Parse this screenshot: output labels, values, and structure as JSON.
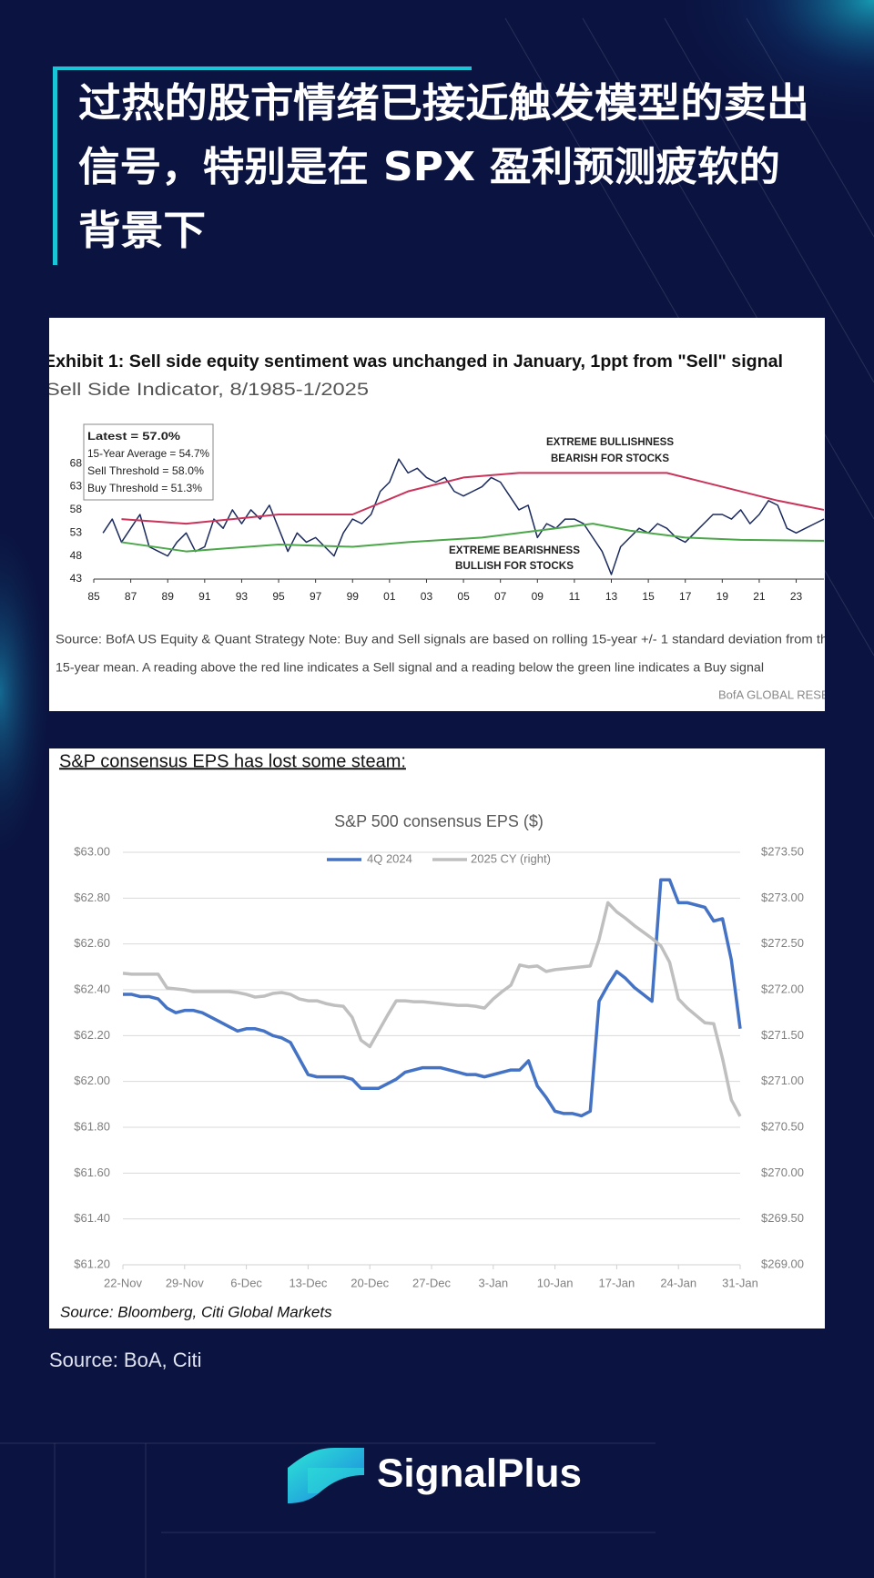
{
  "header": {
    "title_lines": [
      "过热的股市情绪已接近触发模型的卖出",
      "信号，特别是在 SPX 盈利预测疲软的",
      "背景下"
    ]
  },
  "chart_data": [
    {
      "type": "line",
      "title": "Exhibit 1: Sell side equity sentiment was unchanged in January, 1ppt from \"Sell\" signal",
      "subtitle": "Sell Side Indicator, 8/1985-1/2025",
      "stats": [
        "Latest = 57.0%",
        "15-Year Average = 54.7%",
        "Sell Threshold = 58.0%",
        "Buy Threshold = 51.3%"
      ],
      "annotations": [
        [
          "EXTREME BULLISHNESS",
          "BEARISH FOR STOCKS"
        ],
        [
          "EXTREME BEARISHNESS",
          "BULLISH FOR STOCKS"
        ]
      ],
      "source": [
        "Source: BofA US Equity & Quant Strategy Note: Buy and Sell signals are based on rolling 15-year +/- 1 standard deviation from the rolling",
        "15-year mean. A reading above the red line indicates a Sell signal and a reading below the green line indicates a Buy signal"
      ],
      "credit": "BofA GLOBAL RESEARCH",
      "xlim": [
        1985,
        2024.5
      ],
      "xticks": [
        {
          "value": 1985,
          "label": "85"
        },
        {
          "value": 1987,
          "label": "87"
        },
        {
          "value": 1989,
          "label": "89"
        },
        {
          "value": 1991,
          "label": "91"
        },
        {
          "value": 1993,
          "label": "93"
        },
        {
          "value": 1995,
          "label": "95"
        },
        {
          "value": 1997,
          "label": "97"
        },
        {
          "value": 1999,
          "label": "99"
        },
        {
          "value": 2001,
          "label": "01"
        },
        {
          "value": 2003,
          "label": "03"
        },
        {
          "value": 2005,
          "label": "05"
        },
        {
          "value": 2007,
          "label": "07"
        },
        {
          "value": 2009,
          "label": "09"
        },
        {
          "value": 2011,
          "label": "11"
        },
        {
          "value": 2013,
          "label": "13"
        },
        {
          "value": 2015,
          "label": "15"
        },
        {
          "value": 2017,
          "label": "17"
        },
        {
          "value": 2019,
          "label": "19"
        },
        {
          "value": 2021,
          "label": "21"
        },
        {
          "value": 2023,
          "label": "23"
        }
      ],
      "ylim": [
        43,
        71
      ],
      "yticks": [
        43,
        48,
        53,
        58,
        63,
        68
      ],
      "series": [
        {
          "color": "#1b2a5e",
          "x": [
            1985.5,
            1986,
            1986.5,
            1987,
            1987.5,
            1988,
            1988.5,
            1989,
            1989.5,
            1990,
            1990.5,
            1991,
            1991.5,
            1992,
            1992.5,
            1993,
            1993.5,
            1994,
            1994.5,
            1995,
            1995.5,
            1996,
            1996.5,
            1997,
            1997.5,
            1998,
            1998.5,
            1999,
            1999.5,
            2000,
            2000.5,
            2001,
            2001.5,
            2002,
            2002.5,
            2003,
            2003.5,
            2004,
            2004.5,
            2005,
            2005.5,
            2006,
            2006.5,
            2007,
            2007.5,
            2008,
            2008.5,
            2009,
            2009.5,
            2010,
            2010.5,
            2011,
            2011.5,
            2012,
            2012.5,
            2013,
            2013.5,
            2014,
            2014.5,
            2015,
            2015.5,
            2016,
            2016.5,
            2017,
            2017.5,
            2018,
            2018.5,
            2019,
            2019.5,
            2020,
            2020.5,
            2021,
            2021.5,
            2022,
            2022.5,
            2023,
            2023.5,
            2024,
            2024.5
          ],
          "values": [
            53,
            56,
            51,
            54,
            57,
            50,
            49,
            48,
            51,
            53,
            49,
            50,
            56,
            54,
            58,
            55,
            58,
            56,
            59,
            54,
            49,
            53,
            51,
            52,
            50,
            48,
            53,
            56,
            55,
            57,
            62,
            64,
            69,
            66,
            67,
            65,
            64,
            65,
            62,
            61,
            62,
            63,
            65,
            64,
            61,
            58,
            59,
            52,
            55,
            54,
            56,
            56,
            55,
            52,
            49,
            44,
            50,
            52,
            54,
            53,
            55,
            54,
            52,
            51,
            53,
            55,
            57,
            57,
            56,
            58,
            55,
            57,
            60,
            59,
            54,
            53,
            54,
            55,
            56
          ]
        },
        {
          "color": "#c8345a",
          "x": [
            1986.5,
            1990,
            1995,
            1999,
            2002,
            2005,
            2008,
            2012,
            2016,
            2019,
            2022,
            2024.5
          ],
          "values": [
            56,
            55,
            57,
            57,
            62,
            65,
            66,
            66,
            66,
            63,
            60,
            58
          ]
        },
        {
          "color": "#4ca64a",
          "x": [
            1986.5,
            1990,
            1995,
            1999,
            2002,
            2006,
            2010,
            2012,
            2014,
            2017,
            2020,
            2024.5
          ],
          "values": [
            51,
            49,
            50.5,
            50,
            51,
            52,
            54,
            55,
            53.5,
            52,
            51.5,
            51.3
          ]
        }
      ]
    },
    {
      "type": "line",
      "heading": "S&P consensus EPS has lost some steam:",
      "title": "S&P 500 consensus EPS ($)",
      "source": "Source: Bloomberg, Citi Global Markets",
      "grid": true,
      "categories": [
        "22-Nov",
        null,
        null,
        null,
        null,
        null,
        null,
        "29-Nov",
        null,
        null,
        null,
        null,
        null,
        null,
        "6-Dec",
        null,
        null,
        null,
        null,
        null,
        null,
        "13-Dec",
        null,
        null,
        null,
        null,
        null,
        null,
        "20-Dec",
        null,
        null,
        null,
        null,
        null,
        null,
        "27-Dec",
        null,
        null,
        null,
        null,
        null,
        null,
        "3-Jan",
        null,
        null,
        null,
        null,
        null,
        null,
        "10-Jan",
        null,
        null,
        null,
        null,
        null,
        null,
        "17-Jan",
        null,
        null,
        null,
        null,
        null,
        null,
        "24-Jan",
        null,
        null,
        null,
        null,
        null,
        null,
        "31-Jan"
      ],
      "ylim": [
        61.2,
        63
      ],
      "yticks": [
        {
          "value": 61.2,
          "label": "$61.20"
        },
        {
          "value": 61.4,
          "label": "$61.40"
        },
        {
          "value": 61.6,
          "label": "$61.60"
        },
        {
          "value": 61.8,
          "label": "$61.80"
        },
        {
          "value": 62,
          "label": "$62.00"
        },
        {
          "value": 62.2,
          "label": "$62.20"
        },
        {
          "value": 62.4,
          "label": "$62.40"
        },
        {
          "value": 62.6,
          "label": "$62.60"
        },
        {
          "value": 62.8,
          "label": "$62.80"
        },
        {
          "value": 63,
          "label": "$63.00"
        }
      ],
      "y2lim": [
        269,
        273.5
      ],
      "y2ticks": [
        {
          "value": 269,
          "label": "$269.00"
        },
        {
          "value": 269.5,
          "label": "$269.50"
        },
        {
          "value": 270,
          "label": "$270.00"
        },
        {
          "value": 270.5,
          "label": "$270.50"
        },
        {
          "value": 271,
          "label": "$271.00"
        },
        {
          "value": 271.5,
          "label": "$271.50"
        },
        {
          "value": 272,
          "label": "$272.00"
        },
        {
          "value": 272.5,
          "label": "$272.50"
        },
        {
          "value": 273,
          "label": "$273.00"
        },
        {
          "value": 273.5,
          "label": "$273.50"
        }
      ],
      "series": [
        {
          "name": "4Q 2024",
          "color": "#4472c4",
          "values": [
            62.38,
            62.38,
            62.37,
            62.37,
            62.36,
            62.32,
            62.3,
            62.31,
            62.31,
            62.3,
            62.28,
            62.26,
            62.24,
            62.22,
            62.23,
            62.23,
            62.22,
            62.2,
            62.19,
            62.17,
            62.1,
            62.03,
            62.02,
            62.02,
            62.02,
            62.02,
            62.01,
            61.97,
            61.97,
            61.97,
            61.99,
            62.01,
            62.04,
            62.05,
            62.06,
            62.06,
            62.06,
            62.05,
            62.04,
            62.03,
            62.03,
            62.02,
            62.03,
            62.04,
            62.05,
            62.05,
            62.09,
            61.98,
            61.93,
            61.87,
            61.86,
            61.86,
            61.85,
            61.87,
            62.35,
            62.42,
            62.48,
            62.45,
            62.41,
            62.38,
            62.35,
            62.88,
            62.88,
            62.78,
            62.78,
            62.77,
            62.76,
            62.7,
            62.71,
            62.53,
            62.23
          ]
        },
        {
          "name": "2025 CY (right)",
          "color": "#bfbfbf",
          "axis": "y2",
          "values": [
            272.18,
            272.17,
            272.17,
            272.17,
            272.17,
            272.02,
            272.01,
            272.0,
            271.98,
            271.98,
            271.98,
            271.98,
            271.98,
            271.97,
            271.95,
            271.92,
            271.93,
            271.96,
            271.97,
            271.95,
            271.9,
            271.88,
            271.88,
            271.85,
            271.83,
            271.82,
            271.7,
            271.45,
            271.38,
            271.55,
            271.72,
            271.88,
            271.88,
            271.87,
            271.87,
            271.86,
            271.85,
            271.84,
            271.83,
            271.83,
            271.82,
            271.8,
            271.9,
            271.98,
            272.05,
            272.27,
            272.25,
            272.26,
            272.2,
            272.22,
            272.23,
            272.24,
            272.25,
            272.26,
            272.55,
            272.95,
            272.85,
            272.78,
            272.7,
            272.63,
            272.56,
            272.48,
            272.3,
            271.9,
            271.8,
            271.72,
            271.64,
            271.63,
            271.25,
            270.8,
            270.62
          ]
        }
      ]
    }
  ],
  "footer": {
    "source": "Source: BoA, Citi",
    "brand": "SignalPlus"
  }
}
